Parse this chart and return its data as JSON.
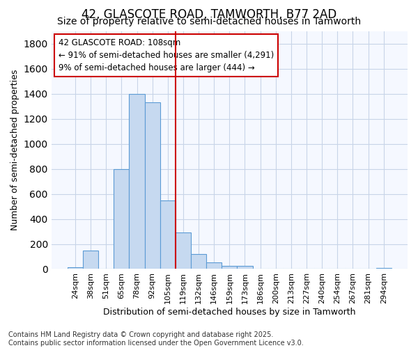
{
  "title1": "42, GLASCOTE ROAD, TAMWORTH, B77 2AD",
  "title2": "Size of property relative to semi-detached houses in Tamworth",
  "xlabel": "Distribution of semi-detached houses by size in Tamworth",
  "ylabel": "Number of semi-detached properties",
  "categories": [
    "24sqm",
    "38sqm",
    "51sqm",
    "65sqm",
    "78sqm",
    "92sqm",
    "105sqm",
    "119sqm",
    "132sqm",
    "146sqm",
    "159sqm",
    "173sqm",
    "186sqm",
    "200sqm",
    "213sqm",
    "227sqm",
    "240sqm",
    "254sqm",
    "267sqm",
    "281sqm",
    "294sqm"
  ],
  "values": [
    15,
    145,
    0,
    800,
    1400,
    1330,
    550,
    290,
    120,
    55,
    25,
    25,
    0,
    0,
    0,
    0,
    0,
    0,
    0,
    0,
    8
  ],
  "bar_color": "#c6d9f0",
  "bar_edge_color": "#5b9bd5",
  "vline_color": "#cc0000",
  "vline_pos": 6.5,
  "annotation_text_line1": "42 GLASCOTE ROAD: 108sqm",
  "annotation_text_line2": "← 91% of semi-detached houses are smaller (4,291)",
  "annotation_text_line3": "9% of semi-detached houses are larger (444) →",
  "annotation_box_color": "#ffffff",
  "annotation_box_edge_color": "#cc0000",
  "ylim": [
    0,
    1900
  ],
  "yticks": [
    0,
    200,
    400,
    600,
    800,
    1000,
    1200,
    1400,
    1600,
    1800
  ],
  "bg_color": "#ffffff",
  "plot_bg_color": "#f5f8ff",
  "grid_color": "#c8d4e8",
  "title_fontsize": 12,
  "subtitle_fontsize": 10,
  "axis_label_fontsize": 9,
  "tick_fontsize": 8,
  "annotation_fontsize": 8.5,
  "footer_fontsize": 7
}
